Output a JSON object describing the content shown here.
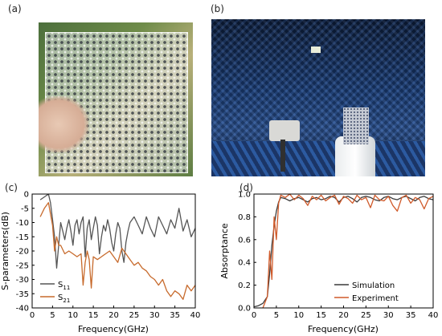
{
  "labels": {
    "a": "(a)",
    "b": "(b)",
    "c": "(c)",
    "d": "(d)"
  },
  "chart_data": [
    {
      "type": "line",
      "panel": "c",
      "title": "",
      "xlabel": "Frequency(GHz)",
      "ylabel": "S-parameters(dB)",
      "xlim": [
        0,
        40
      ],
      "ylim": [
        -40,
        0
      ],
      "xticks": [
        "0",
        "5",
        "10",
        "15",
        "20",
        "25",
        "30",
        "35",
        "40"
      ],
      "yticks": [
        "0",
        "-5",
        "-10",
        "-15",
        "-20",
        "-25",
        "-30",
        "-35",
        "-40"
      ],
      "legend_position": "bottom-left",
      "legend": [
        {
          "base": "S",
          "sub": "11"
        },
        {
          "base": "S",
          "sub": "21"
        }
      ],
      "series": [
        {
          "name": "S11",
          "color": "#555555",
          "x": [
            2,
            3,
            4,
            4.5,
            5,
            5.5,
            6,
            6.5,
            7,
            7.5,
            8,
            8.5,
            9,
            9.5,
            10,
            10.5,
            11,
            11.5,
            12,
            12.5,
            13,
            13.5,
            14,
            14.5,
            15,
            15.5,
            16,
            16.5,
            17,
            17.5,
            18,
            18.5,
            19,
            19.5,
            20,
            20.5,
            21,
            21.5,
            22,
            22.5,
            23,
            23.5,
            24,
            25,
            26,
            27,
            28,
            29,
            30,
            31,
            32,
            33,
            34,
            35,
            36,
            37,
            38,
            39,
            40
          ],
          "y": [
            -2,
            -1,
            0,
            -3,
            -9,
            -15,
            -26,
            -18,
            -10,
            -13,
            -16,
            -12,
            -9,
            -13,
            -18,
            -11,
            -9,
            -14,
            -10,
            -8,
            -22,
            -12,
            -9,
            -16,
            -12,
            -8,
            -11,
            -21,
            -15,
            -11,
            -13,
            -9,
            -12,
            -17,
            -20,
            -14,
            -10,
            -12,
            -20,
            -24,
            -17,
            -13,
            -10,
            -8,
            -11,
            -14,
            -8,
            -12,
            -15,
            -8,
            -11,
            -14,
            -9,
            -12,
            -5,
            -13,
            -9,
            -15,
            -12
          ]
        },
        {
          "name": "S21",
          "color": "#c76a2c",
          "x": [
            2,
            3,
            4,
            5,
            5.5,
            6,
            6.5,
            7,
            8,
            9,
            10,
            11,
            12,
            12.5,
            13,
            13.5,
            14,
            14.5,
            15,
            16,
            17,
            18,
            19,
            20,
            21,
            22,
            23,
            24,
            25,
            26,
            27,
            28,
            29,
            30,
            31,
            32,
            33,
            34,
            35,
            36,
            37,
            38,
            39,
            40
          ],
          "y": [
            -8,
            -5,
            -3,
            -11,
            -20,
            -15,
            -18,
            -18,
            -21,
            -20,
            -21,
            -22,
            -21,
            -32,
            -24,
            -20,
            -23,
            -33,
            -22,
            -23,
            -22,
            -21,
            -20,
            -22,
            -24,
            -19,
            -21,
            -23,
            -25,
            -24,
            -26,
            -27,
            -29,
            -30,
            -32,
            -30,
            -34,
            -36,
            -34,
            -35,
            -37,
            -32,
            -34,
            -32
          ]
        }
      ]
    },
    {
      "type": "line",
      "panel": "d",
      "title": "",
      "xlabel": "Frequency(GHz)",
      "ylabel": "Absorptance",
      "xlim": [
        0,
        40
      ],
      "ylim": [
        0,
        1.0
      ],
      "xticks": [
        "0",
        "5",
        "10",
        "15",
        "20",
        "25",
        "30",
        "35",
        "40"
      ],
      "yticks": [
        "0.0",
        "0.2",
        "0.4",
        "0.6",
        "0.8",
        "1.0"
      ],
      "legend_position": "bottom-right",
      "series": [
        {
          "name": "Simulation",
          "color": "#3a3a3a",
          "x": [
            0,
            1,
            2,
            3,
            3.5,
            4,
            4.5,
            5,
            5.5,
            6,
            7,
            8,
            9,
            10,
            11,
            12,
            13,
            14,
            15,
            16,
            17,
            18,
            19,
            20,
            21,
            22,
            23,
            24,
            25,
            26,
            27,
            28,
            29,
            30,
            31,
            32,
            33,
            34,
            35,
            36,
            37,
            38,
            39,
            40
          ],
          "y": [
            0.01,
            0.02,
            0.04,
            0.1,
            0.3,
            0.55,
            0.72,
            0.85,
            0.93,
            0.97,
            0.96,
            0.94,
            0.96,
            0.97,
            0.95,
            0.93,
            0.96,
            0.97,
            0.95,
            0.96,
            0.98,
            0.97,
            0.93,
            0.97,
            0.98,
            0.96,
            0.93,
            0.97,
            0.98,
            0.97,
            0.95,
            0.94,
            0.97,
            0.98,
            0.96,
            0.95,
            0.97,
            0.98,
            0.96,
            0.94,
            0.97,
            0.98,
            0.96,
            0.95
          ]
        },
        {
          "name": "Experiment",
          "color": "#d05a2a",
          "x": [
            2,
            3,
            3.5,
            4,
            4.5,
            5,
            5.5,
            6,
            7,
            8,
            9,
            10,
            11,
            12,
            13,
            14,
            15,
            16,
            17,
            18,
            19,
            20,
            21,
            22,
            23,
            24,
            25,
            26,
            27,
            28,
            29,
            30,
            31,
            32,
            33,
            34,
            35,
            36,
            37,
            38,
            39,
            40
          ],
          "y": [
            0.0,
            0.1,
            0.5,
            0.25,
            0.8,
            0.6,
            0.92,
            0.99,
            0.97,
            1.0,
            0.95,
            0.99,
            0.96,
            0.9,
            0.98,
            0.95,
            0.99,
            0.94,
            0.97,
            0.99,
            0.91,
            0.98,
            0.96,
            0.92,
            0.99,
            0.95,
            0.97,
            0.88,
            0.99,
            0.95,
            0.94,
            0.98,
            0.9,
            0.85,
            0.97,
            0.99,
            0.92,
            0.97,
            0.95,
            0.87,
            0.96,
            0.98
          ]
        }
      ]
    }
  ]
}
